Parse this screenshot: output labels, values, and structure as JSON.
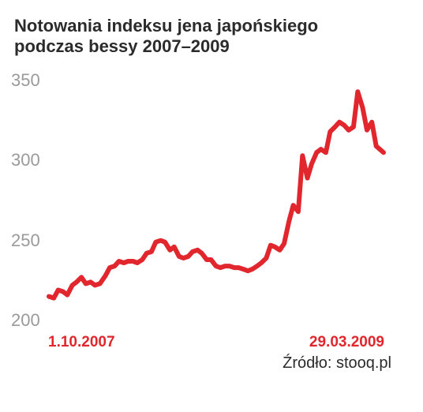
{
  "chart_data": {
    "type": "line",
    "title_line1": "Notowania indeksu jena japońskiego",
    "title_line2": "podczas bessy 2007–2009",
    "xlabel": "",
    "ylabel": "",
    "ylim": [
      200,
      350
    ],
    "yticks": [
      350,
      300,
      250,
      200
    ],
    "x_start_label": "1.10.2007",
    "x_end_label": "29.03.2009",
    "x_range": [
      "2007-10-01",
      "2009-03-29"
    ],
    "grid": false,
    "line_color": "#e1262d",
    "series": [
      {
        "x": [
          "2007-10-01",
          "2007-10-09",
          "2007-10-16",
          "2007-10-24",
          "2007-10-31",
          "2007-11-08",
          "2007-11-15",
          "2007-11-23",
          "2007-11-30",
          "2007-12-08",
          "2007-12-15",
          "2007-12-23",
          "2008-01-01",
          "2008-01-08",
          "2008-01-16",
          "2008-01-23",
          "2008-01-31",
          "2008-02-07",
          "2008-02-15",
          "2008-02-22",
          "2008-03-01",
          "2008-03-08",
          "2008-03-16",
          "2008-03-23",
          "2008-03-31",
          "2008-04-07",
          "2008-04-15",
          "2008-04-22",
          "2008-04-30",
          "2008-05-07",
          "2008-05-15",
          "2008-05-22",
          "2008-05-30",
          "2008-06-06",
          "2008-06-14",
          "2008-06-21",
          "2008-06-29",
          "2008-07-06",
          "2008-07-14",
          "2008-07-21",
          "2008-07-29",
          "2008-08-05",
          "2008-08-13",
          "2008-08-20",
          "2008-08-27",
          "2008-09-04",
          "2008-09-11",
          "2008-09-19",
          "2008-09-26",
          "2008-10-03",
          "2008-10-11",
          "2008-10-18",
          "2008-10-26",
          "2008-11-02",
          "2008-11-10",
          "2008-11-17",
          "2008-11-25",
          "2008-12-02",
          "2008-12-10",
          "2008-12-17",
          "2008-12-25",
          "2009-01-01",
          "2009-01-09",
          "2009-01-16",
          "2009-01-24",
          "2009-01-31",
          "2009-02-08",
          "2009-02-15",
          "2009-02-23",
          "2009-03-02",
          "2009-03-10",
          "2009-03-17",
          "2009-03-29"
        ],
        "values": [
          215,
          214,
          219,
          218,
          216,
          222,
          224,
          227,
          223,
          224,
          222,
          223,
          228,
          233,
          234,
          237,
          236,
          237,
          237,
          236,
          238,
          242,
          243,
          249,
          250,
          249,
          244,
          246,
          240,
          239,
          240,
          243,
          244,
          242,
          238,
          238,
          234,
          233,
          234,
          234,
          233,
          233,
          232,
          231,
          232,
          234,
          236,
          239,
          247,
          246,
          244,
          248,
          262,
          272,
          268,
          303,
          289,
          298,
          305,
          307,
          305,
          318,
          321,
          324,
          322,
          319,
          321,
          343,
          333,
          319,
          324,
          309,
          305
        ]
      }
    ],
    "source_text": "Źródło: stooq.pl"
  }
}
